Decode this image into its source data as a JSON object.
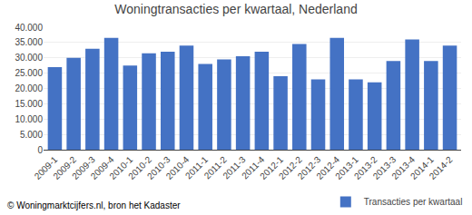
{
  "chart_data": {
    "type": "bar",
    "title": "Woningtransacties per kwartaal, Nederland",
    "categories": [
      "2009-1",
      "2009-2",
      "2009-3",
      "2009-4",
      "2010-1",
      "2010-2",
      "2010-3",
      "2010-4",
      "2011-1",
      "2011-2",
      "2011-3",
      "2011-4",
      "2012-1",
      "2012-2",
      "2012-3",
      "2012-4",
      "2013-1",
      "2013-2",
      "2013-3",
      "2013-4",
      "2014-1",
      "2014-2"
    ],
    "series": [
      {
        "name": "Transacties per kwartaal",
        "color": "#4472C4",
        "values": [
          27000,
          30000,
          33000,
          36500,
          27500,
          31500,
          32000,
          34000,
          28000,
          29500,
          30500,
          32000,
          24000,
          34500,
          23000,
          36500,
          23000,
          22000,
          29000,
          36000,
          29000,
          34000
        ]
      }
    ],
    "annotations": [
      "© Woningmarktcijfers.nl, bron het Kadaster"
    ],
    "ylim": [
      0,
      40000
    ],
    "yticks": [
      0,
      {
        "value": 5000,
        "label": "5.000"
      },
      {
        "value": 10000,
        "label": "10.000"
      },
      {
        "value": 15000,
        "label": "15.000"
      },
      {
        "value": 20000,
        "label": "20.000"
      },
      {
        "value": 25000,
        "label": "25.000"
      },
      {
        "value": 30000,
        "label": "30.000"
      },
      {
        "value": 35000,
        "label": "35.000"
      },
      {
        "value": 40000,
        "label": "40.000"
      }
    ],
    "grid": true,
    "legend": "lower right"
  }
}
